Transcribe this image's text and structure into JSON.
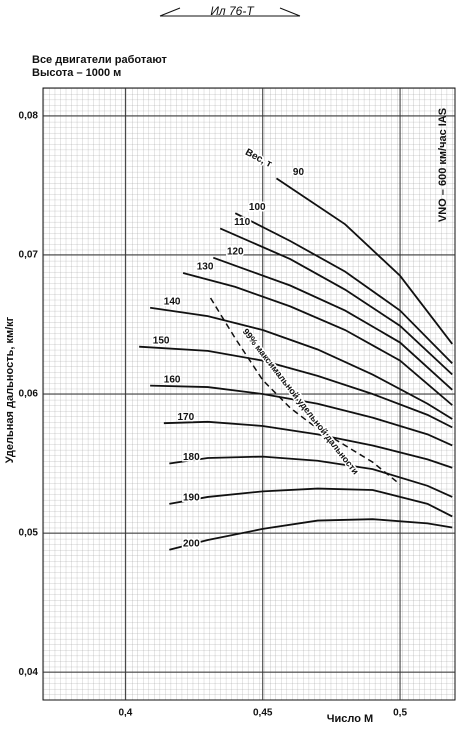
{
  "chart_data": {
    "type": "line",
    "note": "Ил 76-Т",
    "title": "Все двигатели работают",
    "subtitle": "Высота – 1000 м",
    "y_label": "Удельная дальность, км/кг",
    "x_label": "Число М",
    "speed_note": "VNO – 600 км/час IAS",
    "weight_label": "Вес, т",
    "xlim": [
      0.37,
      0.52
    ],
    "ylim": [
      0.038,
      0.082
    ],
    "xticks": [
      {
        "value": 0.4,
        "label": "0,4"
      },
      {
        "value": 0.45,
        "label": "0,45"
      },
      {
        "value": 0.5,
        "label": "0,5"
      }
    ],
    "yticks": [
      {
        "value": 0.04,
        "label": "0,04"
      },
      {
        "value": 0.05,
        "label": "0,05"
      },
      {
        "value": 0.06,
        "label": "0,06"
      },
      {
        "value": 0.07,
        "label": "0,07"
      },
      {
        "value": 0.08,
        "label": "0,08"
      }
    ],
    "grid": true,
    "series": [
      {
        "name": "90",
        "color": "#111111",
        "x": [
          0.455,
          0.48,
          0.5,
          0.519
        ],
        "values": [
          0.0755,
          0.0722,
          0.0685,
          0.0636
        ]
      },
      {
        "name": "100",
        "color": "#111111",
        "x": [
          0.44,
          0.46,
          0.48,
          0.5,
          0.519
        ],
        "values": [
          0.073,
          0.071,
          0.0688,
          0.066,
          0.0622
        ]
      },
      {
        "name": "110",
        "color": "#111111",
        "x": [
          0.4345,
          0.46,
          0.48,
          0.5,
          0.519
        ],
        "values": [
          0.0719,
          0.0697,
          0.0675,
          0.0649,
          0.0614
        ]
      },
      {
        "name": "120",
        "color": "#111111",
        "x": [
          0.432,
          0.46,
          0.48,
          0.5,
          0.519
        ],
        "values": [
          0.0698,
          0.0678,
          0.066,
          0.0637,
          0.0603
        ]
      },
      {
        "name": "130",
        "color": "#111111",
        "x": [
          0.421,
          0.44,
          0.46,
          0.48,
          0.5,
          0.519
        ],
        "values": [
          0.0687,
          0.0677,
          0.0663,
          0.0646,
          0.0624,
          0.0592
        ]
      },
      {
        "name": "140",
        "color": "#111111",
        "x": [
          0.409,
          0.43,
          0.45,
          0.47,
          0.49,
          0.51,
          0.519
        ],
        "values": [
          0.0662,
          0.0656,
          0.0646,
          0.0632,
          0.0614,
          0.0593,
          0.0582
        ]
      },
      {
        "name": "150",
        "color": "#111111",
        "x": [
          0.405,
          0.43,
          0.45,
          0.47,
          0.49,
          0.51,
          0.519
        ],
        "values": [
          0.0634,
          0.0631,
          0.0624,
          0.0613,
          0.06,
          0.0585,
          0.0576
        ]
      },
      {
        "name": "160",
        "color": "#111111",
        "x": [
          0.409,
          0.43,
          0.45,
          0.47,
          0.49,
          0.51,
          0.519
        ],
        "values": [
          0.0606,
          0.0605,
          0.06,
          0.0593,
          0.0583,
          0.0571,
          0.0563
        ]
      },
      {
        "name": "170",
        "color": "#111111",
        "x": [
          0.414,
          0.43,
          0.45,
          0.47,
          0.49,
          0.51,
          0.519
        ],
        "values": [
          0.0579,
          0.058,
          0.0577,
          0.0571,
          0.0563,
          0.0553,
          0.0547
        ]
      },
      {
        "name": "180",
        "color": "#111111",
        "x": [
          0.416,
          0.43,
          0.45,
          0.47,
          0.49,
          0.51,
          0.519
        ],
        "values": [
          0.055,
          0.0554,
          0.0555,
          0.0552,
          0.0546,
          0.0534,
          0.0526
        ]
      },
      {
        "name": "190",
        "color": "#111111",
        "x": [
          0.416,
          0.43,
          0.45,
          0.47,
          0.49,
          0.51,
          0.519
        ],
        "values": [
          0.0521,
          0.0526,
          0.053,
          0.0532,
          0.0531,
          0.0521,
          0.0512
        ]
      },
      {
        "name": "200",
        "color": "#111111",
        "x": [
          0.416,
          0.43,
          0.45,
          0.47,
          0.49,
          0.51,
          0.519
        ],
        "values": [
          0.0488,
          0.0495,
          0.0503,
          0.0509,
          0.051,
          0.0507,
          0.0504
        ]
      },
      {
        "name": "99% максимальной удельной дальности",
        "color": "#111111",
        "dashed": true,
        "x": [
          0.431,
          0.44,
          0.45,
          0.46,
          0.47,
          0.49,
          0.5
        ],
        "values": [
          0.0669,
          0.064,
          0.061,
          0.059,
          0.0575,
          0.0551,
          0.0535
        ]
      }
    ]
  }
}
